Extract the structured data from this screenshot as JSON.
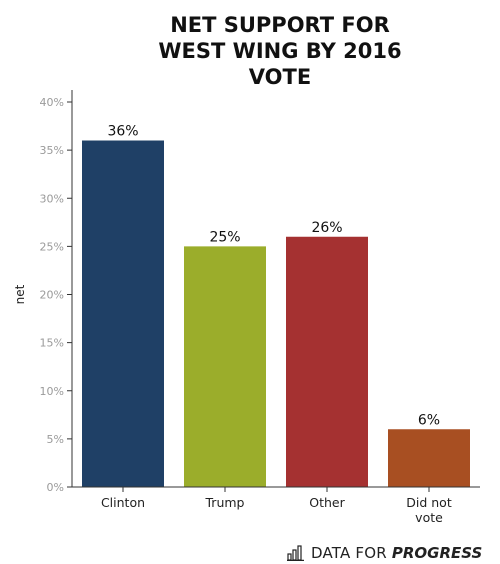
{
  "chart_data": {
    "type": "bar",
    "title_lines": [
      "NET SUPPORT FOR",
      "WEST WING BY 2016",
      "VOTE"
    ],
    "ylabel": "net",
    "xlabel": "",
    "ylim": [
      0,
      40
    ],
    "y_ticks": [
      "0%",
      "5%",
      "10%",
      "15%",
      "20%",
      "25%",
      "30%",
      "35%",
      "40%"
    ],
    "y_tick_values": [
      0,
      5,
      10,
      15,
      20,
      25,
      30,
      35,
      40
    ],
    "categories": [
      "Clinton",
      "Trump",
      "Other",
      "Did not vote"
    ],
    "category_lines": [
      [
        "Clinton"
      ],
      [
        "Trump"
      ],
      [
        "Other"
      ],
      [
        "Did not",
        "vote"
      ]
    ],
    "values": [
      36,
      25,
      26,
      6
    ],
    "value_labels": [
      "36%",
      "25%",
      "26%",
      "6%"
    ],
    "colors": [
      "#1f4066",
      "#9bad2b",
      "#a53131",
      "#a84f22"
    ],
    "grid": false,
    "legend": "none"
  },
  "footer": {
    "brand_a": "DATA FOR",
    "brand_b": "PROGRESS",
    "icon": "bar-chart-logo-icon"
  }
}
